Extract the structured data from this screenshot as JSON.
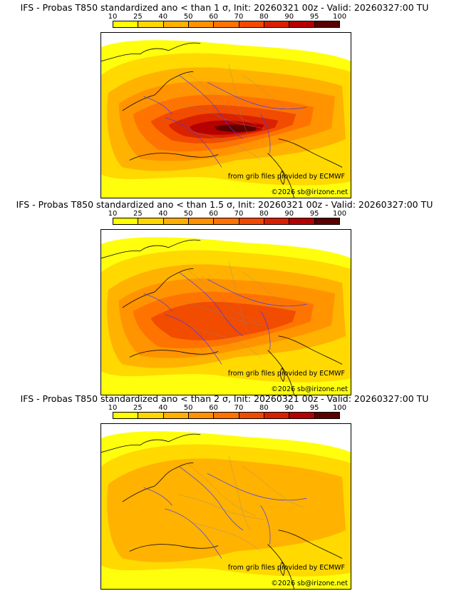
{
  "colorbar": {
    "ticks": [
      "10",
      "25",
      "40",
      "50",
      "60",
      "70",
      "80",
      "90",
      "95",
      "100"
    ],
    "colors": [
      "#ffff00",
      "#ffd700",
      "#ffb000",
      "#ff9200",
      "#ff7200",
      "#f04a00",
      "#d82000",
      "#b40000",
      "#5a0000"
    ]
  },
  "panels": [
    {
      "title": "IFS - Probas T850  standardized ano < than 1 σ, Init: 20260321 00z - Valid: 20260327:00 TU",
      "source": "from grib files provided by ECMWF",
      "copyright": "©2026 sb@irizone.net",
      "intensity": 1.0
    },
    {
      "title": "IFS - Probas T850  standardized ano < than 1.5 σ, Init: 20260321 00z - Valid: 20260327:00 TU",
      "source": "from grib files provided by ECMWF",
      "copyright": "©2026 sb@irizone.net",
      "intensity": 0.68
    },
    {
      "title": "IFS - Probas T850  standardized ano < than 2 σ, Init: 20260321 00z - Valid: 20260327:00 TU",
      "source": "from grib files provided by ECMWF",
      "copyright": "©2026 sb@irizone.net",
      "intensity": 0.38
    }
  ]
}
